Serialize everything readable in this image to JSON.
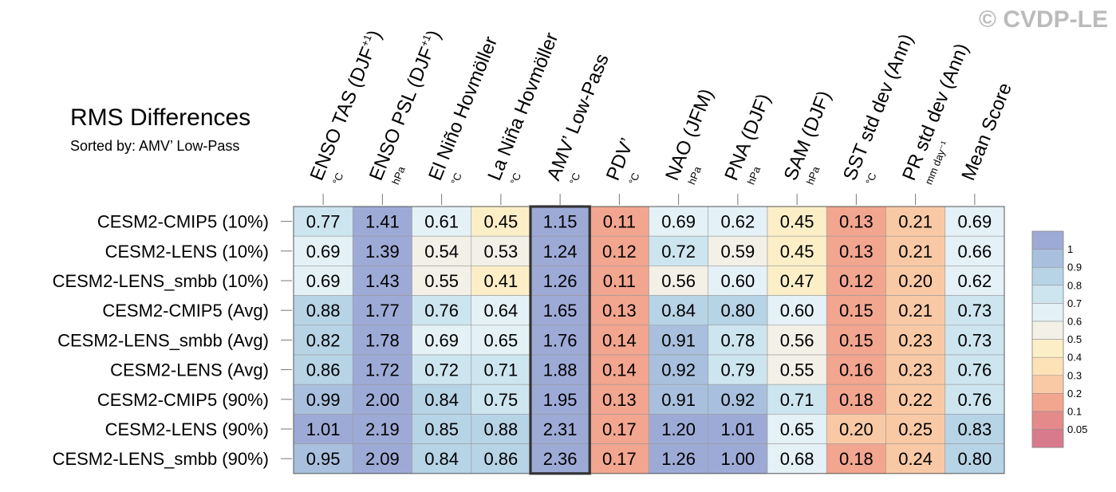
{
  "chart_data": {
    "type": "heatmap",
    "title": "RMS Differences",
    "subtitle": "Sorted by: AMV’ Low-Pass",
    "watermark": "© CVDP-LE",
    "highlighted_column": "AMV’ Low-Pass",
    "columns": [
      {
        "label": "ENSO TAS (DJF",
        "sup": "+1",
        "tail": ")",
        "unit": "°C"
      },
      {
        "label": "ENSO PSL (DJF",
        "sup": "+1",
        "tail": ")",
        "unit": "hPa"
      },
      {
        "label": "El Niño Hovmöller",
        "sup": "",
        "tail": "",
        "unit": "°C"
      },
      {
        "label": "La Niña Hovmöller",
        "sup": "",
        "tail": "",
        "unit": "°C"
      },
      {
        "label": "AMV’ Low-Pass",
        "sup": "",
        "tail": "",
        "unit": "°C"
      },
      {
        "label": "PDV’",
        "sup": "",
        "tail": "",
        "unit": "°C"
      },
      {
        "label": "NAO (JFM)",
        "sup": "",
        "tail": "",
        "unit": "hPa"
      },
      {
        "label": "PNA (DJF)",
        "sup": "",
        "tail": "",
        "unit": "hPa"
      },
      {
        "label": "SAM (DJF)",
        "sup": "",
        "tail": "",
        "unit": "hPa"
      },
      {
        "label": "SST std dev (Ann)",
        "sup": "",
        "tail": "",
        "unit": "°C"
      },
      {
        "label": "PR std dev (Ann)",
        "sup": "",
        "tail": "",
        "unit": "mm day⁻¹"
      },
      {
        "label": "Mean Score",
        "sup": "",
        "tail": "",
        "unit": ""
      }
    ],
    "rows": [
      "CESM2-CMIP5 (10%)",
      "CESM2-LENS (10%)",
      "CESM2-LENS_smbb (10%)",
      "CESM2-CMIP5 (Avg)",
      "CESM2-LENS_smbb (Avg)",
      "CESM2-LENS (Avg)",
      "CESM2-CMIP5 (90%)",
      "CESM2-LENS (90%)",
      "CESM2-LENS_smbb (90%)"
    ],
    "values": [
      [
        0.77,
        1.41,
        0.61,
        0.45,
        1.15,
        0.11,
        0.69,
        0.62,
        0.45,
        0.13,
        0.21,
        0.69
      ],
      [
        0.69,
        1.39,
        0.54,
        0.53,
        1.24,
        0.12,
        0.72,
        0.59,
        0.45,
        0.13,
        0.21,
        0.66
      ],
      [
        0.69,
        1.43,
        0.55,
        0.41,
        1.26,
        0.11,
        0.56,
        0.6,
        0.47,
        0.12,
        0.2,
        0.62
      ],
      [
        0.88,
        1.77,
        0.76,
        0.64,
        1.65,
        0.13,
        0.84,
        0.8,
        0.6,
        0.15,
        0.21,
        0.73
      ],
      [
        0.82,
        1.78,
        0.69,
        0.65,
        1.76,
        0.14,
        0.91,
        0.78,
        0.56,
        0.15,
        0.23,
        0.73
      ],
      [
        0.86,
        1.72,
        0.72,
        0.71,
        1.88,
        0.14,
        0.92,
        0.79,
        0.55,
        0.16,
        0.23,
        0.76
      ],
      [
        0.99,
        2.0,
        0.84,
        0.75,
        1.95,
        0.13,
        0.91,
        0.92,
        0.71,
        0.18,
        0.22,
        0.76
      ],
      [
        1.01,
        2.19,
        0.85,
        0.88,
        2.31,
        0.17,
        1.2,
        1.01,
        0.65,
        0.2,
        0.25,
        0.83
      ],
      [
        0.95,
        2.09,
        0.84,
        0.86,
        2.36,
        0.17,
        1.26,
        1.0,
        0.68,
        0.18,
        0.24,
        0.8
      ]
    ],
    "colorbar": {
      "levels": [
        "1",
        "0.9",
        "0.8",
        "0.7",
        "0.6",
        "0.5",
        "0.4",
        "0.3",
        "0.2",
        "0.1",
        "0.05"
      ],
      "colors": [
        "#9eaad6",
        "#a8c0dd",
        "#b7d3e6",
        "#cde5ef",
        "#e4f1f6",
        "#f2f0e7",
        "#fcefc8",
        "#fde2b8",
        "#f9c9a5",
        "#f2a58f",
        "#e58a8a",
        "#d97a8c"
      ]
    }
  }
}
